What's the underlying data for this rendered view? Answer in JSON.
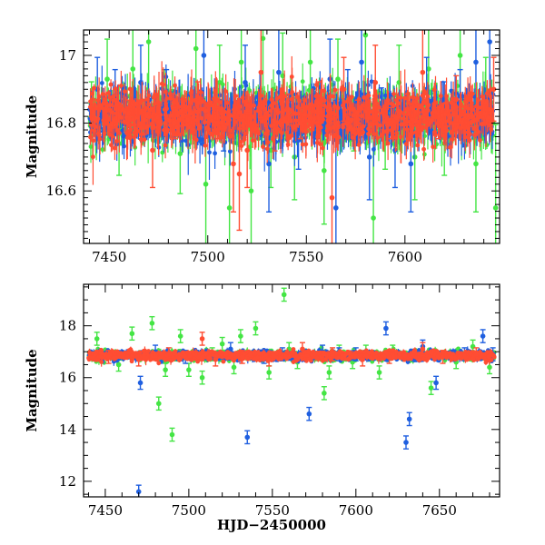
{
  "chart_data": [
    {
      "type": "scatter",
      "panel": "top",
      "xlabel": "",
      "ylabel": "Magnitude",
      "xlim": [
        7437,
        7648
      ],
      "ylim": [
        17.075,
        16.445
      ],
      "y_inverted": true,
      "xticks": [
        7450,
        7500,
        7550,
        7600
      ],
      "yticks": [
        16.6,
        16.8,
        17
      ],
      "ytick_labels": [
        "16.6",
        "16.8",
        "17"
      ],
      "baseline_magnitude": 16.82,
      "series": [
        {
          "color": "#44e544",
          "values": [
            [
              7441,
              16.86
            ],
            [
              7449,
              16.93
            ],
            [
              7455,
              16.74
            ],
            [
              7462,
              16.96
            ],
            [
              7470,
              17.04
            ],
            [
              7478,
              16.88
            ],
            [
              7486,
              16.71
            ],
            [
              7494,
              17.02
            ],
            [
              7499,
              16.62
            ],
            [
              7506,
              16.92
            ],
            [
              7511,
              16.55
            ],
            [
              7517,
              16.98
            ],
            [
              7522,
              16.6
            ],
            [
              7528,
              17.05
            ],
            [
              7532,
              16.72
            ],
            [
              7538,
              16.94
            ],
            [
              7544,
              16.7
            ],
            [
              7552,
              16.98
            ],
            [
              7559,
              16.66
            ],
            [
              7566,
              16.93
            ],
            [
              7574,
              16.78
            ],
            [
              7580,
              17.06
            ],
            [
              7584,
              16.52
            ],
            [
              7590,
              16.75
            ],
            [
              7597,
              16.92
            ],
            [
              7605,
              16.7
            ],
            [
              7612,
              16.96
            ],
            [
              7620,
              16.74
            ],
            [
              7628,
              17.0
            ],
            [
              7636,
              16.68
            ],
            [
              7641,
              16.9
            ],
            [
              7646,
              16.55
            ]
          ]
        },
        {
          "color": "#1f5fe0",
          "values": [
            [
              7444,
              16.9
            ],
            [
              7453,
              16.88
            ],
            [
              7466,
              16.92
            ],
            [
              7479,
              16.88
            ],
            [
              7498,
              17.0
            ],
            [
              7508,
              16.78
            ],
            [
              7519,
              16.92
            ],
            [
              7531,
              16.68
            ],
            [
              7536,
              16.95
            ],
            [
              7546,
              16.75
            ],
            [
              7555,
              16.8
            ],
            [
              7562,
              16.93
            ],
            [
              7565,
              16.55
            ],
            [
              7571,
              16.88
            ],
            [
              7578,
              16.98
            ],
            [
              7582,
              16.7
            ],
            [
              7588,
              16.85
            ],
            [
              7595,
              16.72
            ],
            [
              7603,
              16.68
            ],
            [
              7611,
              16.9
            ],
            [
              7620,
              16.86
            ],
            [
              7628,
              16.88
            ],
            [
              7636,
              16.98
            ],
            [
              7643,
              17.04
            ]
          ]
        },
        {
          "color": "#ff4d33",
          "values": [
            [
              7448,
              16.84
            ],
            [
              7460,
              16.83
            ],
            [
              7472,
              16.72
            ],
            [
              7483,
              16.8
            ],
            [
              7495,
              16.86
            ],
            [
              7505,
              16.8
            ],
            [
              7513,
              16.68
            ],
            [
              7516,
              16.65
            ],
            [
              7520,
              16.72
            ],
            [
              7527,
              16.95
            ],
            [
              7534,
              16.78
            ],
            [
              7541,
              16.84
            ],
            [
              7547,
              16.8
            ],
            [
              7556,
              16.86
            ],
            [
              7563,
              16.58
            ],
            [
              7569,
              16.9
            ],
            [
              7576,
              16.83
            ],
            [
              7585,
              16.92
            ],
            [
              7593,
              16.8
            ],
            [
              7601,
              16.84
            ],
            [
              7609,
              16.95
            ],
            [
              7617,
              16.8
            ],
            [
              7626,
              16.87
            ],
            [
              7634,
              16.82
            ],
            [
              7645,
              16.9
            ]
          ]
        }
      ]
    },
    {
      "type": "scatter",
      "panel": "bottom",
      "xlabel": "HJD−2450000",
      "ylabel": "Magnitude",
      "xlim": [
        7437,
        7686
      ],
      "ylim": [
        19.6,
        11.4
      ],
      "y_inverted": true,
      "xticks": [
        7450,
        7500,
        7550,
        7600,
        7650
      ],
      "yticks": [
        12,
        14,
        16,
        18
      ],
      "ytick_labels": [
        "12",
        "14",
        "16",
        "18"
      ],
      "baseline_magnitude": 16.85,
      "series": [
        {
          "color": "#44e544",
          "values": [
            [
              7445,
              17.5
            ],
            [
              7458,
              16.5
            ],
            [
              7466,
              17.7
            ],
            [
              7478,
              18.1
            ],
            [
              7482,
              15.0
            ],
            [
              7486,
              16.3
            ],
            [
              7490,
              13.8
            ],
            [
              7495,
              17.6
            ],
            [
              7500,
              16.3
            ],
            [
              7508,
              16.0
            ],
            [
              7514,
              16.9
            ],
            [
              7520,
              17.3
            ],
            [
              7527,
              16.4
            ],
            [
              7531,
              17.6
            ],
            [
              7540,
              17.9
            ],
            [
              7548,
              16.2
            ],
            [
              7557,
              19.2
            ],
            [
              7560,
              17.1
            ],
            [
              7565,
              16.6
            ],
            [
              7581,
              15.4
            ],
            [
              7584,
              16.2
            ],
            [
              7590,
              17.0
            ],
            [
              7598,
              16.6
            ],
            [
              7606,
              17.0
            ],
            [
              7614,
              16.2
            ],
            [
              7622,
              17.0
            ],
            [
              7645,
              15.6
            ],
            [
              7660,
              16.6
            ],
            [
              7670,
              17.2
            ],
            [
              7680,
              16.4
            ]
          ]
        },
        {
          "color": "#1f5fe0",
          "values": [
            [
              7470,
              11.6
            ],
            [
              7471,
              15.8
            ],
            [
              7480,
              17.0
            ],
            [
              7498,
              16.8
            ],
            [
              7525,
              17.1
            ],
            [
              7535,
              13.7
            ],
            [
              7545,
              16.8
            ],
            [
              7556,
              16.9
            ],
            [
              7572,
              14.6
            ],
            [
              7580,
              17.0
            ],
            [
              7590,
              16.9
            ],
            [
              7600,
              16.9
            ],
            [
              7618,
              17.9
            ],
            [
              7630,
              13.5
            ],
            [
              7632,
              14.4
            ],
            [
              7640,
              17.2
            ],
            [
              7648,
              15.8
            ],
            [
              7665,
              16.9
            ],
            [
              7676,
              17.6
            ],
            [
              7682,
              16.9
            ]
          ]
        },
        {
          "color": "#ff4d33",
          "values": [
            [
              7452,
              16.8
            ],
            [
              7470,
              16.7
            ],
            [
              7488,
              16.9
            ],
            [
              7508,
              17.5
            ],
            [
              7516,
              16.7
            ],
            [
              7532,
              16.8
            ],
            [
              7548,
              16.7
            ],
            [
              7568,
              17.1
            ],
            [
              7586,
              16.9
            ],
            [
              7604,
              16.7
            ],
            [
              7620,
              16.8
            ],
            [
              7640,
              17.1
            ],
            [
              7652,
              16.8
            ],
            [
              7672,
              16.9
            ]
          ]
        }
      ]
    }
  ]
}
